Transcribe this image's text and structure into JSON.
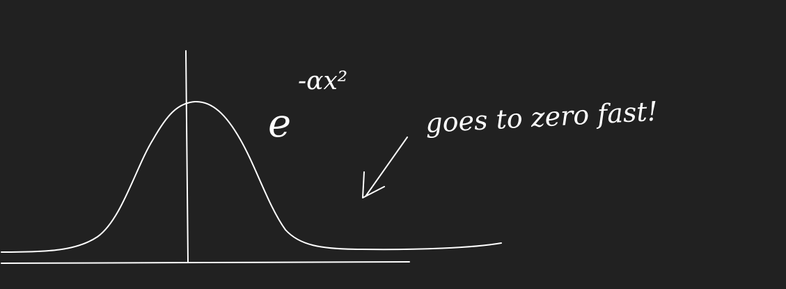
{
  "background_color": "#212121",
  "ink_color": "#ffffff",
  "formula": {
    "base": "e",
    "exponent": "-αx²"
  },
  "annotation": "goes to zero fast!",
  "icons": [
    "arrow-pointing-to-tail"
  ]
}
